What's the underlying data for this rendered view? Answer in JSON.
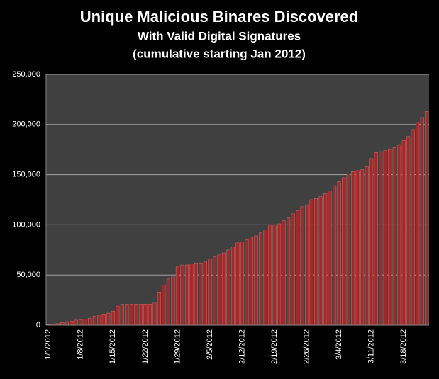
{
  "chart_data": {
    "type": "bar",
    "title": "Unique Malicious Binares Discovered",
    "subtitle": "With Valid  Digital Signatures",
    "note": "(cumulative starting Jan 2012)",
    "categories": [
      "1/1/2012",
      null,
      null,
      null,
      null,
      null,
      null,
      "1/8/2012",
      null,
      null,
      null,
      null,
      null,
      null,
      "1/15/2012",
      null,
      null,
      null,
      null,
      null,
      null,
      "1/22/2012",
      null,
      null,
      null,
      null,
      null,
      null,
      "1/29/2012",
      null,
      null,
      null,
      null,
      null,
      null,
      "2/5/2012",
      null,
      null,
      null,
      null,
      null,
      null,
      "2/12/2012",
      null,
      null,
      null,
      null,
      null,
      null,
      "2/19/2012",
      null,
      null,
      null,
      null,
      null,
      null,
      "2/26/2012",
      null,
      null,
      null,
      null,
      null,
      null,
      "3/4/2012",
      null,
      null,
      null,
      null,
      null,
      null,
      "3/11/2012",
      null,
      null,
      null,
      null,
      null,
      null,
      "3/18/2012",
      null,
      null,
      null,
      null,
      null
    ],
    "values": [
      500,
      1000,
      1500,
      2500,
      3500,
      4000,
      5000,
      5500,
      6000,
      7000,
      9000,
      10000,
      11000,
      12000,
      14000,
      19000,
      21000,
      21000,
      21000,
      21000,
      21000,
      21000,
      21000,
      22000,
      33000,
      40000,
      46000,
      48000,
      58000,
      60000,
      60000,
      61000,
      62000,
      62000,
      63000,
      66000,
      68000,
      70000,
      72000,
      75000,
      78000,
      82000,
      83000,
      85000,
      88000,
      89000,
      92000,
      95000,
      100000,
      100000,
      101000,
      104000,
      107000,
      111000,
      114000,
      118000,
      120000,
      125000,
      126000,
      128000,
      131000,
      134000,
      139000,
      143000,
      147000,
      151000,
      153000,
      154000,
      155000,
      158000,
      166000,
      172000,
      173000,
      174000,
      175000,
      177000,
      180000,
      184000,
      188000,
      195000,
      202000,
      207000,
      213000
    ],
    "color": "#9e2b2b",
    "ylim": [
      0,
      250000
    ],
    "yticks": [
      0,
      {
        "value": 50000,
        "label": "50,000"
      },
      {
        "value": 100000,
        "label": "100,000"
      },
      {
        "value": 150000,
        "label": "150,000"
      },
      {
        "value": 200000,
        "label": "200,000"
      },
      {
        "value": 250000,
        "label": "250,000"
      }
    ],
    "grid": true
  }
}
